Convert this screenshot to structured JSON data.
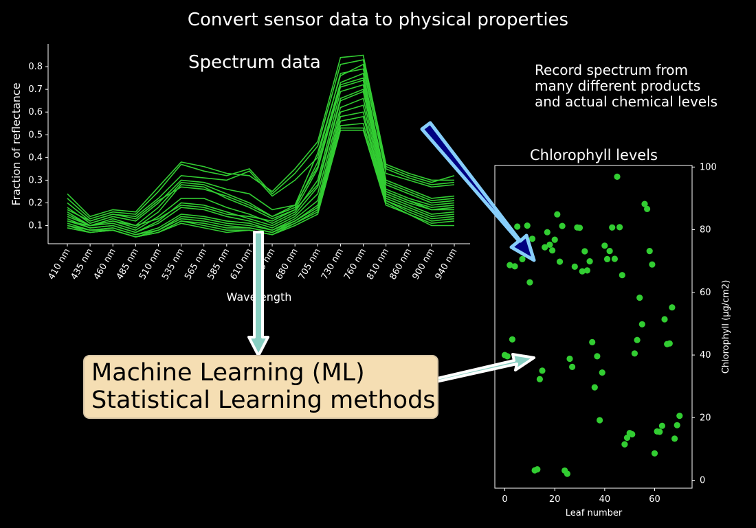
{
  "title": "Convert sensor data to physical properties",
  "note": [
    "Record spectrum from",
    "many different products",
    "and actual chemical levels"
  ],
  "ml_box": {
    "line1": "Machine Learning (ML)",
    "line2": "Statistical Learning methods"
  },
  "colors": {
    "background": "#000000",
    "series": "#32cd32",
    "ml_box_fill": "#f5deb3",
    "arrow_teal": "#88cfc2",
    "arrow_navy": "#000080",
    "arrow_navy_edge": "#87cefa"
  },
  "chart_data": [
    {
      "type": "line",
      "title": "Spectrum data",
      "xlabel": "Wavelength",
      "ylabel": "Fraction of reflectance",
      "categories": [
        "410 nm",
        "435 nm",
        "460 nm",
        "485 nm",
        "510 nm",
        "535 nm",
        "565 nm",
        "585 nm",
        "610 nm",
        "645 nm",
        "680 nm",
        "705 nm",
        "730 nm",
        "760 nm",
        "810 nm",
        "860 nm",
        "900 nm",
        "940 nm"
      ],
      "ylim": [
        0.02,
        0.9
      ],
      "yticks": [
        0.1,
        0.2,
        0.3,
        0.4,
        0.5,
        0.6,
        0.7,
        0.8
      ],
      "series": [
        {
          "values": [
            0.24,
            0.14,
            0.17,
            0.16,
            0.27,
            0.38,
            0.36,
            0.33,
            0.32,
            0.25,
            0.35,
            0.47,
            0.84,
            0.85,
            0.37,
            0.33,
            0.3,
            0.3
          ]
        },
        {
          "values": [
            0.22,
            0.13,
            0.16,
            0.15,
            0.25,
            0.37,
            0.34,
            0.32,
            0.35,
            0.24,
            0.33,
            0.45,
            0.81,
            0.83,
            0.36,
            0.32,
            0.29,
            0.32
          ]
        },
        {
          "values": [
            0.2,
            0.12,
            0.15,
            0.14,
            0.22,
            0.32,
            0.31,
            0.3,
            0.34,
            0.23,
            0.3,
            0.4,
            0.77,
            0.79,
            0.35,
            0.31,
            0.28,
            0.29
          ]
        },
        {
          "values": [
            0.18,
            0.11,
            0.14,
            0.12,
            0.2,
            0.3,
            0.29,
            0.26,
            0.24,
            0.17,
            0.19,
            0.42,
            0.76,
            0.81,
            0.33,
            0.3,
            0.27,
            0.28
          ]
        },
        {
          "values": [
            0.16,
            0.1,
            0.13,
            0.1,
            0.18,
            0.29,
            0.28,
            0.24,
            0.2,
            0.14,
            0.18,
            0.38,
            0.73,
            0.77,
            0.3,
            0.26,
            0.22,
            0.23
          ]
        },
        {
          "values": [
            0.15,
            0.1,
            0.12,
            0.09,
            0.16,
            0.28,
            0.27,
            0.22,
            0.18,
            0.13,
            0.17,
            0.35,
            0.71,
            0.74,
            0.28,
            0.24,
            0.2,
            0.21
          ]
        },
        {
          "values": [
            0.14,
            0.1,
            0.11,
            0.08,
            0.14,
            0.22,
            0.22,
            0.18,
            0.15,
            0.11,
            0.16,
            0.3,
            0.69,
            0.72,
            0.26,
            0.22,
            0.19,
            0.2
          ]
        },
        {
          "values": [
            0.13,
            0.09,
            0.1,
            0.07,
            0.12,
            0.2,
            0.19,
            0.16,
            0.13,
            0.1,
            0.15,
            0.27,
            0.65,
            0.69,
            0.25,
            0.21,
            0.18,
            0.19
          ]
        },
        {
          "values": [
            0.12,
            0.09,
            0.1,
            0.07,
            0.11,
            0.18,
            0.17,
            0.14,
            0.12,
            0.09,
            0.14,
            0.24,
            0.62,
            0.66,
            0.24,
            0.2,
            0.17,
            0.17
          ]
        },
        {
          "values": [
            0.11,
            0.08,
            0.09,
            0.06,
            0.09,
            0.15,
            0.14,
            0.12,
            0.11,
            0.08,
            0.13,
            0.21,
            0.6,
            0.63,
            0.23,
            0.19,
            0.15,
            0.16
          ]
        },
        {
          "values": [
            0.1,
            0.08,
            0.09,
            0.06,
            0.08,
            0.14,
            0.13,
            0.11,
            0.1,
            0.08,
            0.12,
            0.19,
            0.58,
            0.6,
            0.22,
            0.18,
            0.14,
            0.15
          ]
        },
        {
          "values": [
            0.1,
            0.08,
            0.08,
            0.05,
            0.08,
            0.13,
            0.12,
            0.1,
            0.09,
            0.07,
            0.12,
            0.18,
            0.56,
            0.58,
            0.21,
            0.17,
            0.13,
            0.14
          ]
        },
        {
          "values": [
            0.1,
            0.07,
            0.08,
            0.05,
            0.07,
            0.12,
            0.11,
            0.09,
            0.09,
            0.07,
            0.11,
            0.17,
            0.54,
            0.55,
            0.21,
            0.16,
            0.12,
            0.13
          ]
        },
        {
          "values": [
            0.09,
            0.07,
            0.08,
            0.05,
            0.07,
            0.12,
            0.1,
            0.08,
            0.08,
            0.06,
            0.11,
            0.16,
            0.53,
            0.53,
            0.2,
            0.15,
            0.11,
            0.12
          ]
        },
        {
          "values": [
            0.09,
            0.07,
            0.08,
            0.05,
            0.07,
            0.11,
            0.09,
            0.07,
            0.08,
            0.06,
            0.1,
            0.15,
            0.52,
            0.52,
            0.19,
            0.15,
            0.1,
            0.1
          ]
        },
        {
          "values": [
            0.12,
            0.1,
            0.12,
            0.1,
            0.13,
            0.19,
            0.18,
            0.15,
            0.14,
            0.12,
            0.17,
            0.28,
            0.66,
            0.7,
            0.25,
            0.21,
            0.17,
            0.18
          ]
        },
        {
          "values": [
            0.17,
            0.12,
            0.15,
            0.13,
            0.21,
            0.27,
            0.26,
            0.23,
            0.19,
            0.14,
            0.19,
            0.36,
            0.72,
            0.75,
            0.29,
            0.25,
            0.21,
            0.22
          ]
        }
      ]
    },
    {
      "type": "scatter",
      "title": "Chlorophyll levels",
      "xlabel": "Leaf number",
      "ylabel": "Chlorophyll (µg/cm2)",
      "xlim": [
        -4,
        75
      ],
      "ylim": [
        -2.5,
        100.5
      ],
      "xticks": [
        0,
        20,
        40,
        60
      ],
      "yticks": [
        0,
        20,
        40,
        60,
        80,
        100
      ],
      "x": [
        0,
        1,
        2,
        3,
        4,
        5,
        7,
        9,
        10,
        11,
        12,
        13,
        14,
        15,
        16,
        17,
        18,
        19,
        20,
        21,
        22,
        23,
        24,
        25,
        26,
        27,
        28,
        29,
        30,
        31,
        32,
        33,
        34,
        35,
        36,
        37,
        38,
        39,
        40,
        41,
        42,
        43,
        44,
        45,
        46,
        47,
        48,
        49,
        50,
        51,
        52,
        53,
        54,
        55,
        56,
        57,
        58,
        59,
        60,
        61,
        62,
        63,
        64,
        65,
        66,
        67,
        68,
        69,
        70
      ],
      "y": [
        40,
        39.6,
        68.7,
        45,
        68.3,
        81,
        70.6,
        81.3,
        63.2,
        77.1,
        3.2,
        3.5,
        32.3,
        35,
        74.4,
        79.2,
        75.2,
        73.4,
        76.8,
        84.9,
        69.8,
        81.2,
        3.1,
        2.1,
        38.8,
        36.2,
        68.2,
        80.7,
        80.6,
        66.7,
        73.1,
        67,
        69.9,
        44.1,
        29.7,
        39.6,
        19.2,
        34.4,
        74.9,
        70.6,
        73.2,
        80.7,
        70.7,
        96.9,
        80.8,
        65.5,
        11.5,
        13.6,
        15.1,
        14.7,
        40.5,
        44.8,
        58.3,
        49.8,
        88.2,
        86.6,
        73.2,
        68.9,
        8.6,
        15.6,
        15.5,
        17.4,
        51.4,
        43.5,
        43.7,
        55.2,
        13.3,
        17.6,
        20.6
      ]
    }
  ]
}
